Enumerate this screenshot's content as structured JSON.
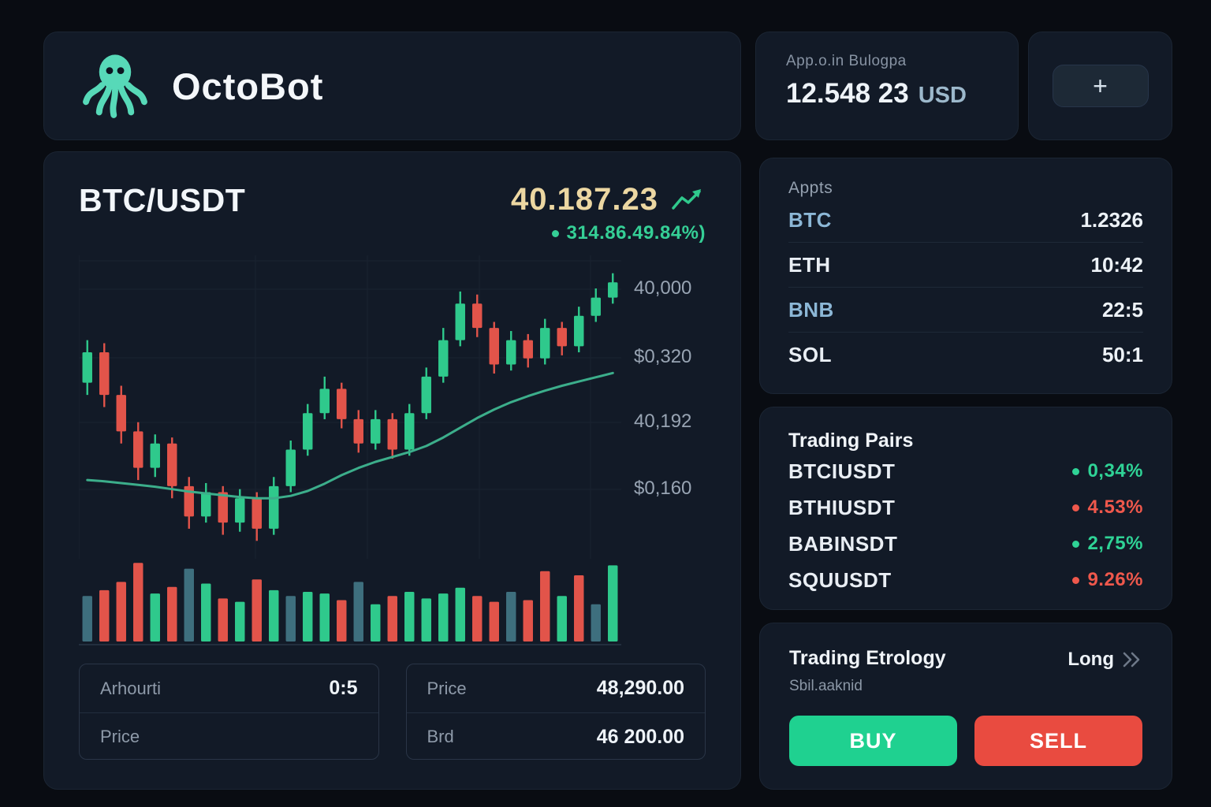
{
  "app": {
    "name": "OctoBot"
  },
  "account": {
    "label": "App.o.in Bulogpa",
    "balance": "12.548 23",
    "currency": "USD",
    "add_button_label": "+"
  },
  "chart": {
    "pair": "BTC/USDT",
    "price": "40.187.23",
    "change": "314.86.49.84%)",
    "order_form": {
      "fields": [
        {
          "label": "Arhourti",
          "value": "0:5"
        },
        {
          "label": "Price",
          "value": ""
        },
        {
          "label": "Price",
          "value": "48,290.00"
        },
        {
          "label": "Brd",
          "value": "46 200.00"
        }
      ]
    }
  },
  "assets": {
    "title": "Appts",
    "rows": [
      {
        "symbol": "BTC",
        "value": "1.2326"
      },
      {
        "symbol": "ETH",
        "value": "10:42"
      },
      {
        "symbol": "BNB",
        "value": "22:5"
      },
      {
        "symbol": "SOL",
        "value": "50:1"
      }
    ]
  },
  "trading_pairs": {
    "title": "Trading Pairs",
    "rows": [
      {
        "pair": "BTCIUSDT",
        "change": "0,34%",
        "direction": "up"
      },
      {
        "pair": "BTHIUSDT",
        "change": "4.53%",
        "direction": "down"
      },
      {
        "pair": "BABINSDT",
        "change": "2,75%",
        "direction": "up"
      },
      {
        "pair": "SQUUSDT",
        "change": "9.26%",
        "direction": "down"
      }
    ]
  },
  "strategy": {
    "title": "Trading Etrology",
    "subtitle": "Sbil.aaknid",
    "mode": "Long",
    "buy_label": "BUY",
    "sell_label": "SELL"
  },
  "colors": {
    "up": "#2fc98c",
    "down": "#e2544a",
    "teal": "#3e6f7e",
    "ma_line": "#3cae8b",
    "gold": "#ecd7a2",
    "accent": "#57d9b8"
  },
  "chart_data": {
    "type": "candlestick",
    "ylim": [
      40020,
      40480
    ],
    "y_axis_labels": [
      "40,000",
      "$0,320",
      "40,192",
      "$0,160"
    ],
    "candles": [
      [
        40290,
        40360,
        40270,
        40340
      ],
      [
        40340,
        40355,
        40250,
        40270
      ],
      [
        40270,
        40285,
        40190,
        40210
      ],
      [
        40210,
        40225,
        40130,
        40150
      ],
      [
        40150,
        40205,
        40135,
        40190
      ],
      [
        40190,
        40200,
        40100,
        40120
      ],
      [
        40120,
        40135,
        40050,
        40070
      ],
      [
        40070,
        40125,
        40060,
        40110
      ],
      [
        40110,
        40120,
        40040,
        40060
      ],
      [
        40060,
        40115,
        40045,
        40100
      ],
      [
        40100,
        40110,
        40030,
        40050
      ],
      [
        40050,
        40135,
        40040,
        40120
      ],
      [
        40120,
        40195,
        40110,
        40180
      ],
      [
        40180,
        40255,
        40170,
        40240
      ],
      [
        40240,
        40300,
        40230,
        40280
      ],
      [
        40280,
        40290,
        40215,
        40230
      ],
      [
        40230,
        40245,
        40175,
        40190
      ],
      [
        40190,
        40245,
        40180,
        40230
      ],
      [
        40230,
        40240,
        40165,
        40180
      ],
      [
        40180,
        40255,
        40170,
        40240
      ],
      [
        40240,
        40315,
        40230,
        40300
      ],
      [
        40300,
        40380,
        40290,
        40360
      ],
      [
        40360,
        40440,
        40350,
        40420
      ],
      [
        40420,
        40435,
        40365,
        40380
      ],
      [
        40380,
        40390,
        40305,
        40320
      ],
      [
        40320,
        40375,
        40310,
        40360
      ],
      [
        40360,
        40370,
        40315,
        40330
      ],
      [
        40330,
        40395,
        40320,
        40380
      ],
      [
        40380,
        40390,
        40335,
        40350
      ],
      [
        40350,
        40415,
        40340,
        40400
      ],
      [
        40400,
        40445,
        40390,
        40430
      ],
      [
        40430,
        40470,
        40420,
        40455
      ]
    ],
    "ma_line": [
      40130,
      40128,
      40125,
      40122,
      40119,
      40115,
      40111,
      40108,
      40105,
      40102,
      40100,
      40100,
      40104,
      40112,
      40124,
      40138,
      40150,
      40160,
      40168,
      40176,
      40186,
      40200,
      40216,
      40232,
      40246,
      40258,
      40268,
      40277,
      40285,
      40292,
      40299,
      40306
    ],
    "volumes": [
      55,
      62,
      72,
      95,
      58,
      66,
      88,
      70,
      52,
      48,
      75,
      62,
      55,
      60,
      58,
      50,
      72,
      45,
      55,
      60,
      52,
      58,
      65,
      55,
      48,
      60,
      50,
      85,
      55,
      80,
      45,
      92
    ],
    "volume_kinds": [
      "n",
      "d",
      "d",
      "d",
      "u",
      "d",
      "n",
      "u",
      "d",
      "u",
      "d",
      "u",
      "n",
      "u",
      "u",
      "d",
      "n",
      "u",
      "d",
      "u",
      "u",
      "u",
      "u",
      "d",
      "d",
      "n",
      "d",
      "d",
      "u",
      "d",
      "n",
      "u"
    ]
  }
}
